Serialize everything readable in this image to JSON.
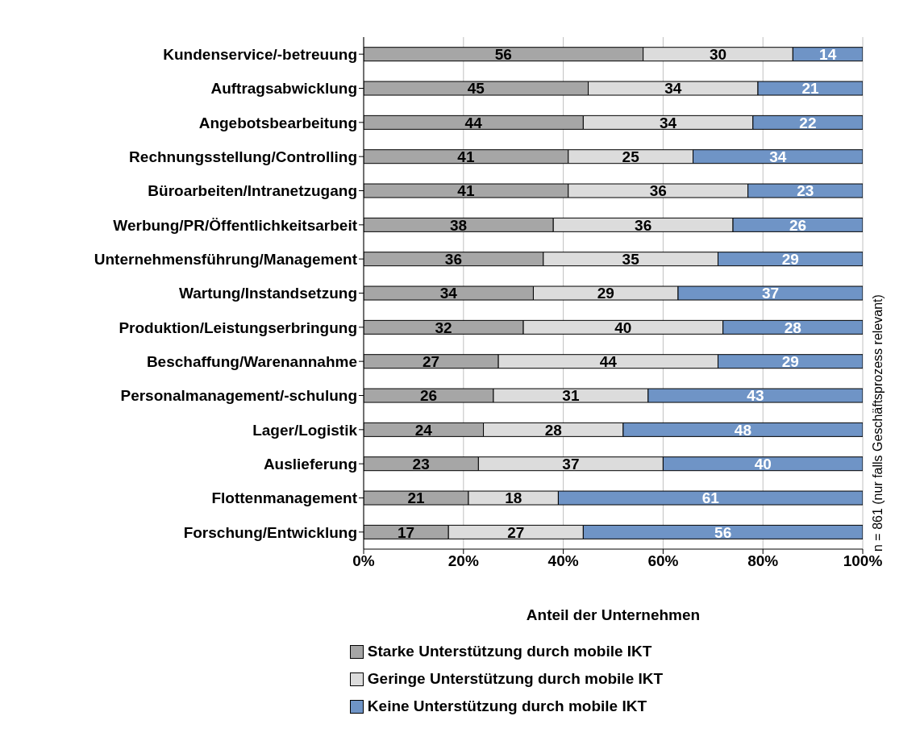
{
  "chart_data": {
    "type": "bar",
    "orientation": "horizontal",
    "stacked": true,
    "xlabel": "Anteil der Unternehmen",
    "categories": [
      "Kundenservice/-betreuung",
      "Auftragsabwicklung",
      "Angebotsbearbeitung",
      "Rechnungsstellung/Controlling",
      "Büroarbeiten/Intranetzugang",
      "Werbung/PR/Öffentlichkeitsarbeit",
      "Unternehmensführung/Management",
      "Wartung/Instandsetzung",
      "Produktion/Leistungserbringung",
      "Beschaffung/Warenannahme",
      "Personalmanagement/-schulung",
      "Lager/Logistik",
      "Auslieferung",
      "Flottenmanagement",
      "Forschung/Entwicklung"
    ],
    "series": [
      {
        "name": "Starke Unterstützung durch mobile IKT",
        "color": "#a6a6a6",
        "values": [
          56,
          45,
          44,
          41,
          41,
          38,
          36,
          34,
          32,
          27,
          26,
          24,
          23,
          21,
          17
        ]
      },
      {
        "name": "Geringe Unterstützung durch mobile IKT",
        "color": "#dcdcdc",
        "values": [
          30,
          34,
          34,
          25,
          36,
          36,
          35,
          29,
          40,
          44,
          31,
          28,
          37,
          18,
          27
        ]
      },
      {
        "name": "Keine Unterstützung durch mobile IKT",
        "color": "#6f94c6",
        "values": [
          14,
          21,
          22,
          34,
          23,
          26,
          29,
          37,
          28,
          29,
          43,
          48,
          40,
          61,
          56
        ]
      }
    ],
    "xlim": [
      0,
      100
    ],
    "xticks": [
      {
        "value": 0,
        "label": "0%"
      },
      {
        "value": 20,
        "label": "20%"
      },
      {
        "value": 40,
        "label": "40%"
      },
      {
        "value": 60,
        "label": "60%"
      },
      {
        "value": 80,
        "label": "80%"
      },
      {
        "value": 100,
        "label": "100%"
      }
    ],
    "grid": "x",
    "legend": "bottom",
    "data_labels": true,
    "annotations": [
      "n = 861 (nur falls Geschäftsprozess relevant)"
    ]
  }
}
